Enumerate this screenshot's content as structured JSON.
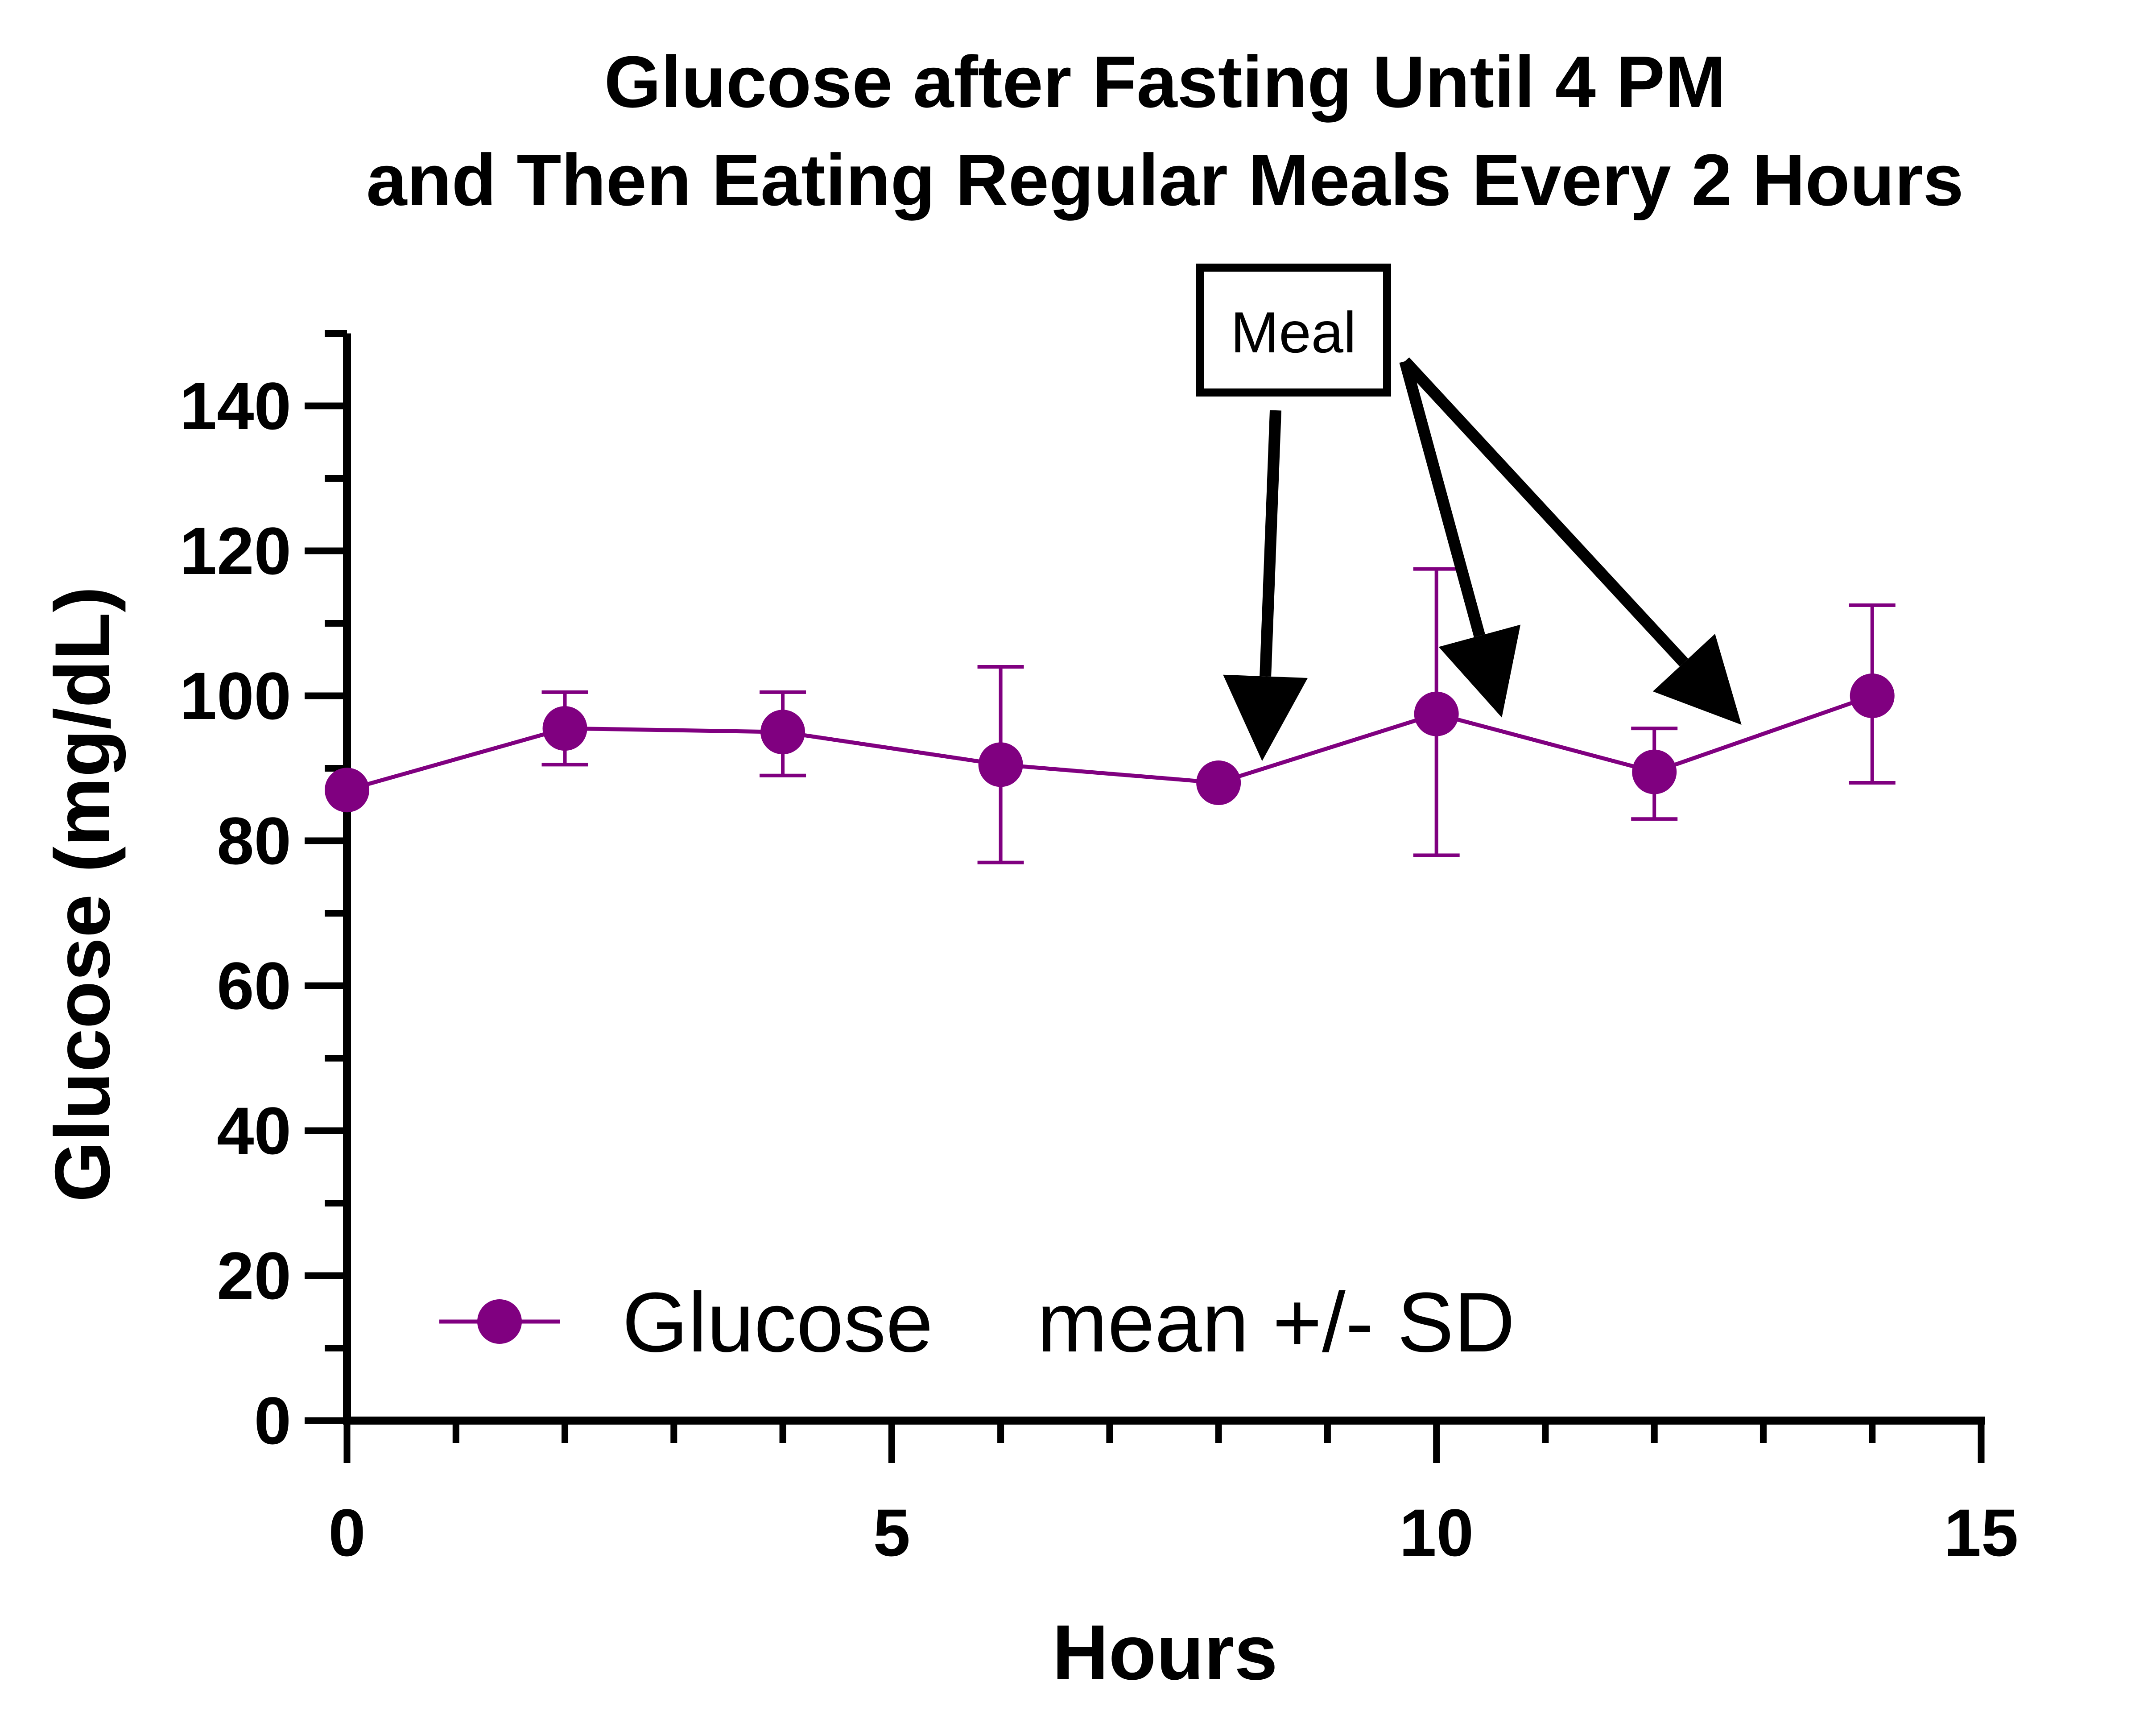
{
  "chart_data": {
    "type": "line",
    "title_line1": "Glucose after Fasting Until 4 PM",
    "title_line2": "and Then Eating Regular Meals Every 2 Hours",
    "xlabel": "Hours",
    "ylabel": "Glucose (mg/dL)",
    "xlim": [
      0,
      15
    ],
    "ylim": [
      0,
      150
    ],
    "x_major_ticks": [
      0,
      5,
      10,
      15
    ],
    "x_tick_labels": [
      "0",
      "5",
      "10",
      "15"
    ],
    "x_minor_step": 1,
    "y_major_ticks": [
      0,
      20,
      40,
      60,
      80,
      100,
      120,
      140
    ],
    "y_tick_labels": [
      "0",
      "20",
      "40",
      "60",
      "80",
      "100",
      "120",
      "140"
    ],
    "y_minor_step": 10,
    "grid": false,
    "series": [
      {
        "name": "Glucose",
        "color": "#800080",
        "x": [
          0,
          2,
          4,
          6,
          8,
          10,
          12,
          14
        ],
        "y": [
          87,
          95.5,
          95,
          90.5,
          88,
          97.5,
          89.5,
          100
        ],
        "err_low": [
          87,
          90.5,
          89,
          77,
          88,
          78,
          83,
          88
        ],
        "err_high": [
          87,
          100.5,
          100.5,
          104,
          88,
          117.5,
          95.5,
          112.5
        ]
      }
    ],
    "legend": {
      "placement": "bottom-left",
      "series_label": "Glucose",
      "stat_label": "mean +/- SD"
    },
    "annotations": {
      "box_label": "Meal",
      "arrow_targets": [
        {
          "x": 8.4,
          "y": 91
        },
        {
          "x": 10.6,
          "y": 97
        },
        {
          "x": 12.8,
          "y": 96
        }
      ]
    }
  }
}
